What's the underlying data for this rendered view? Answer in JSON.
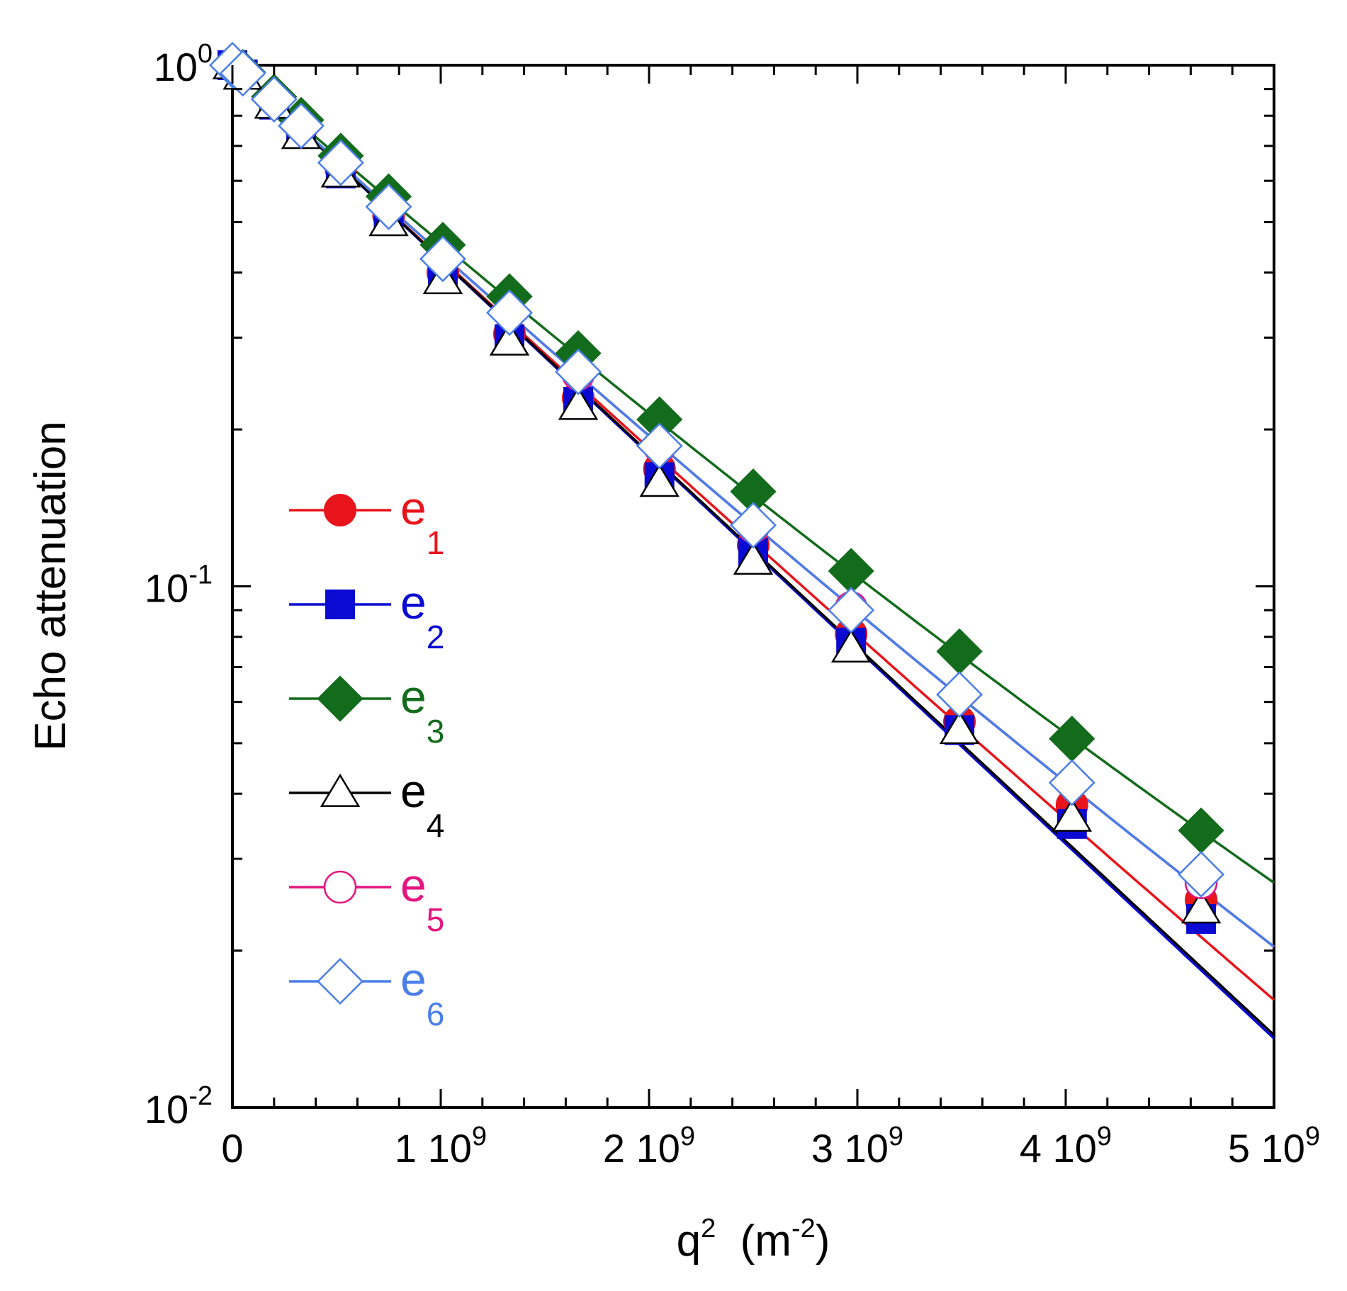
{
  "chart_data": {
    "type": "scatter",
    "xlabel": "q",
    "xlabel_sup": "2",
    "xlabel_unit": "(m",
    "xlabel_unit_sup": "-2",
    "xlabel_unit_close": ")",
    "ylabel": "Echo attenuation",
    "xlim": [
      0,
      5000000000
    ],
    "ylim": [
      0.01,
      1
    ],
    "yscale": "log",
    "x_ticks": [
      {
        "value": 0,
        "label": "0",
        "sup": ""
      },
      {
        "value": 1000000000,
        "label": "1 10",
        "sup": "9"
      },
      {
        "value": 2000000000,
        "label": "2 10",
        "sup": "9"
      },
      {
        "value": 3000000000,
        "label": "3 10",
        "sup": "9"
      },
      {
        "value": 4000000000,
        "label": "4 10",
        "sup": "9"
      },
      {
        "value": 5000000000,
        "label": "5 10",
        "sup": "9"
      }
    ],
    "y_ticks": [
      {
        "value": 1,
        "label": "10",
        "sup": "0"
      },
      {
        "value": 0.1,
        "label": "10",
        "sup": "-1"
      },
      {
        "value": 0.01,
        "label": "10",
        "sup": "-2"
      }
    ],
    "legend_position": "left-middle",
    "series": [
      {
        "name": "e",
        "sub": "1",
        "color": "#e8141b",
        "marker": "circle",
        "filled": true,
        "fit": {
          "a": 1.0,
          "d": 8.6e-10,
          "c": 6.8e-21
        },
        "points": [
          [
            0,
            1.0
          ],
          [
            50000000.0,
            0.96
          ],
          [
            200000000.0,
            0.85
          ],
          [
            330000000.0,
            0.755
          ],
          [
            520000000.0,
            0.635
          ],
          [
            750000000.0,
            0.515
          ],
          [
            1010000000.0,
            0.4
          ],
          [
            1330000000.0,
            0.305
          ],
          [
            1660000000.0,
            0.23
          ],
          [
            2050000000.0,
            0.168
          ],
          [
            2500000000.0,
            0.12
          ],
          [
            2970000000.0,
            0.081
          ],
          [
            3490000000.0,
            0.055
          ],
          [
            4030000000.0,
            0.038
          ],
          [
            4650000000.0,
            0.025
          ]
        ]
      },
      {
        "name": "e",
        "sub": "2",
        "color": "#0a0ad2",
        "marker": "square",
        "filled": true,
        "fit": {
          "a": 1.0,
          "d": 8.6e-10,
          "c": 0.0
        },
        "points": [
          [
            0,
            1.0
          ],
          [
            50000000.0,
            0.96
          ],
          [
            200000000.0,
            0.84
          ],
          [
            330000000.0,
            0.74
          ],
          [
            520000000.0,
            0.62
          ],
          [
            750000000.0,
            0.505
          ],
          [
            1010000000.0,
            0.39
          ],
          [
            1330000000.0,
            0.298
          ],
          [
            1660000000.0,
            0.226
          ],
          [
            2050000000.0,
            0.162
          ],
          [
            2500000000.0,
            0.116
          ],
          [
            2970000000.0,
            0.078
          ],
          [
            3490000000.0,
            0.053
          ],
          [
            4030000000.0,
            0.035
          ],
          [
            4650000000.0,
            0.023
          ]
        ]
      },
      {
        "name": "e",
        "sub": "3",
        "color": "#136b1c",
        "marker": "diamond",
        "filled": true,
        "fit": {
          "a": 1.0,
          "d": 8e-10,
          "c": 1.55e-20
        },
        "points": [
          [
            0,
            1.0
          ],
          [
            50000000.0,
            0.97
          ],
          [
            200000000.0,
            0.87
          ],
          [
            330000000.0,
            0.785
          ],
          [
            520000000.0,
            0.67
          ],
          [
            750000000.0,
            0.56
          ],
          [
            1010000000.0,
            0.452
          ],
          [
            1330000000.0,
            0.36
          ],
          [
            1660000000.0,
            0.28
          ],
          [
            2050000000.0,
            0.209
          ],
          [
            2500000000.0,
            0.152
          ],
          [
            2970000000.0,
            0.107
          ],
          [
            3490000000.0,
            0.075
          ],
          [
            4030000000.0,
            0.051
          ],
          [
            4650000000.0,
            0.034
          ]
        ]
      },
      {
        "name": "e",
        "sub": "4",
        "color": "#000000",
        "marker": "triangle",
        "filled": false,
        "fit": {
          "a": 1.0,
          "d": 8.57e-10,
          "c": 0.0
        },
        "points": [
          [
            0,
            1.0
          ],
          [
            50000000.0,
            0.955
          ],
          [
            200000000.0,
            0.84
          ],
          [
            330000000.0,
            0.735
          ],
          [
            520000000.0,
            0.62
          ],
          [
            750000000.0,
            0.5
          ],
          [
            1010000000.0,
            0.387
          ],
          [
            1330000000.0,
            0.295
          ],
          [
            1660000000.0,
            0.222
          ],
          [
            2050000000.0,
            0.158
          ],
          [
            2500000000.0,
            0.112
          ],
          [
            2970000000.0,
            0.076
          ],
          [
            3490000000.0,
            0.053
          ],
          [
            4030000000.0,
            0.036
          ],
          [
            4650000000.0,
            0.024
          ]
        ]
      },
      {
        "name": "e",
        "sub": "5",
        "color": "#e4157f",
        "marker": "circle",
        "filled": false,
        "fit": {
          "a": 1.0,
          "d": 8.45e-10,
          "c": 1.32e-20
        },
        "points": [
          [
            0,
            1.0
          ],
          [
            50000000.0,
            0.965
          ],
          [
            200000000.0,
            0.86
          ],
          [
            330000000.0,
            0.765
          ],
          [
            520000000.0,
            0.65
          ],
          [
            750000000.0,
            0.535
          ],
          [
            1010000000.0,
            0.425
          ],
          [
            1330000000.0,
            0.335
          ],
          [
            1660000000.0,
            0.255
          ],
          [
            2050000000.0,
            0.185
          ],
          [
            2500000000.0,
            0.13
          ],
          [
            2970000000.0,
            0.091
          ],
          [
            3490000000.0,
            0.062
          ],
          [
            4030000000.0,
            0.042
          ],
          [
            4650000000.0,
            0.027
          ]
        ]
      },
      {
        "name": "e",
        "sub": "6",
        "color": "#4a7ee8",
        "marker": "diamond",
        "filled": false,
        "fit": {
          "a": 1.0,
          "d": 8.45e-10,
          "c": 1.32e-20
        },
        "points": [
          [
            0,
            1.0
          ],
          [
            50000000.0,
            0.965
          ],
          [
            200000000.0,
            0.86
          ],
          [
            330000000.0,
            0.765
          ],
          [
            520000000.0,
            0.65
          ],
          [
            750000000.0,
            0.535
          ],
          [
            1010000000.0,
            0.425
          ],
          [
            1330000000.0,
            0.335
          ],
          [
            1660000000.0,
            0.258
          ],
          [
            2050000000.0,
            0.186
          ],
          [
            2500000000.0,
            0.131
          ],
          [
            2970000000.0,
            0.09
          ],
          [
            3490000000.0,
            0.062
          ],
          [
            4030000000.0,
            0.042
          ],
          [
            4650000000.0,
            0.028
          ]
        ]
      }
    ]
  }
}
